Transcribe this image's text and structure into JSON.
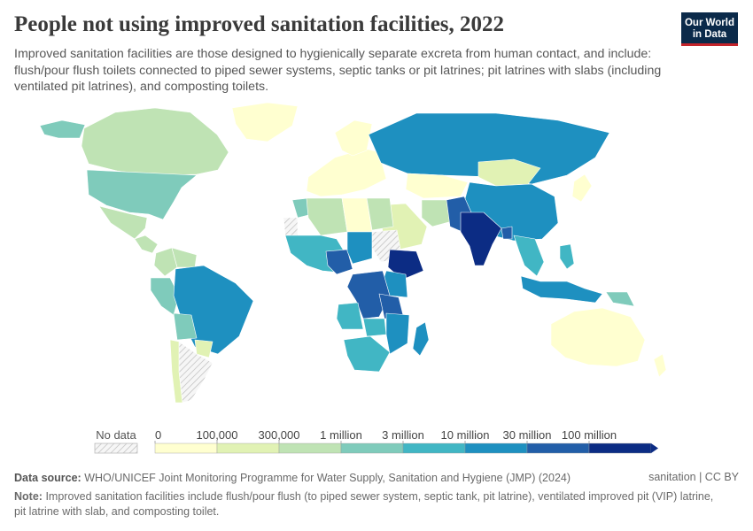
{
  "header": {
    "title": "People not using improved sanitation facilities, 2022",
    "subtitle": "Improved sanitation facilities are those designed to hygienically separate excreta from human contact, and include: flush/pour flush toilets connected to piped sewer systems, septic tanks or pit latrines; pit latrines with slabs (including ventilated pit latrines), and composting toilets.",
    "logo_line1": "Our World",
    "logo_line2": "in Data"
  },
  "legend": {
    "no_data_label": "No data",
    "thresholds": [
      "0",
      "100,000",
      "300,000",
      "1 million",
      "3 million",
      "10 million",
      "30 million",
      "100 million"
    ],
    "colors": [
      "#ffffd0",
      "#e1f2b4",
      "#bfe3b4",
      "#7fcbbb",
      "#41b6c4",
      "#1e90c0",
      "#225ea8",
      "#0c2c84"
    ]
  },
  "footer": {
    "source_label": "Data source:",
    "source_text": "WHO/UNICEF Joint Monitoring Programme for Water Supply, Sanitation and Hygiene (JMP) (2024)",
    "license": "sanitation | CC BY",
    "note_label": "Note:",
    "note_text": "Improved sanitation facilities include flush/pour flush (to piped sewer system, septic tank, pit latrine), ventilated improved pit (VIP) latrine, pit latrine with slab, and composting toilet."
  },
  "map_data": {
    "metric": "People not using improved sanitation facilities",
    "year": "2022",
    "regions": [
      {
        "name": "Canada",
        "bin": 3
      },
      {
        "name": "Alaska",
        "bin": 4
      },
      {
        "name": "Greenland",
        "bin": 1
      },
      {
        "name": "United States",
        "bin": 4
      },
      {
        "name": "Mexico",
        "bin": 3
      },
      {
        "name": "Central America",
        "bin": 3
      },
      {
        "name": "Colombia",
        "bin": 3
      },
      {
        "name": "Venezuela",
        "bin": 3
      },
      {
        "name": "Peru",
        "bin": 4
      },
      {
        "name": "Brazil",
        "bin": 6
      },
      {
        "name": "Bolivia",
        "bin": 4
      },
      {
        "name": "Paraguay",
        "bin": 2
      },
      {
        "name": "Argentina",
        "bin": 0
      },
      {
        "name": "Chile",
        "bin": 2
      },
      {
        "name": "Europe",
        "bin": 1
      },
      {
        "name": "Scandinavia",
        "bin": 1
      },
      {
        "name": "Russia",
        "bin": 6
      },
      {
        "name": "Kazakhstan",
        "bin": 1
      },
      {
        "name": "Mongolia",
        "bin": 2
      },
      {
        "name": "China",
        "bin": 6
      },
      {
        "name": "Japan",
        "bin": 1
      },
      {
        "name": "Middle East",
        "bin": 2
      },
      {
        "name": "Iran",
        "bin": 3
      },
      {
        "name": "Pakistan",
        "bin": 7
      },
      {
        "name": "India",
        "bin": 8
      },
      {
        "name": "Bangladesh",
        "bin": 7
      },
      {
        "name": "Southeast Asia",
        "bin": 5
      },
      {
        "name": "Indonesia",
        "bin": 6
      },
      {
        "name": "Philippines",
        "bin": 5
      },
      {
        "name": "Papua New Guinea",
        "bin": 4
      },
      {
        "name": "Australia",
        "bin": 1
      },
      {
        "name": "New Zealand",
        "bin": 1
      },
      {
        "name": "Morocco",
        "bin": 4
      },
      {
        "name": "Algeria",
        "bin": 3
      },
      {
        "name": "Libya",
        "bin": 1
      },
      {
        "name": "Egypt",
        "bin": 3
      },
      {
        "name": "Western Sahara",
        "bin": 0
      },
      {
        "name": "Sudan",
        "bin": 0
      },
      {
        "name": "West Africa",
        "bin": 5
      },
      {
        "name": "Nigeria",
        "bin": 7
      },
      {
        "name": "Chad",
        "bin": 6
      },
      {
        "name": "Ethiopia",
        "bin": 8
      },
      {
        "name": "Kenya",
        "bin": 6
      },
      {
        "name": "DR Congo",
        "bin": 7
      },
      {
        "name": "Tanzania",
        "bin": 7
      },
      {
        "name": "Angola",
        "bin": 5
      },
      {
        "name": "Zambia",
        "bin": 5
      },
      {
        "name": "Mozambique",
        "bin": 6
      },
      {
        "name": "Madagascar",
        "bin": 6
      },
      {
        "name": "South Africa",
        "bin": 5
      }
    ]
  }
}
